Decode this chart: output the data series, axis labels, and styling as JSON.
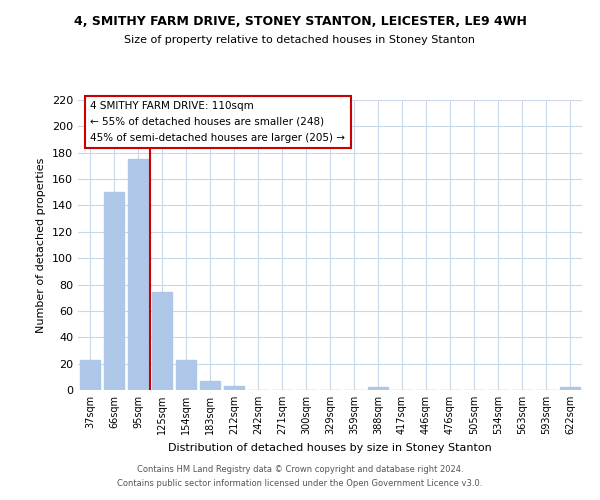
{
  "title": "4, SMITHY FARM DRIVE, STONEY STANTON, LEICESTER, LE9 4WH",
  "subtitle": "Size of property relative to detached houses in Stoney Stanton",
  "xlabel": "Distribution of detached houses by size in Stoney Stanton",
  "ylabel": "Number of detached properties",
  "bar_labels": [
    "37sqm",
    "66sqm",
    "95sqm",
    "125sqm",
    "154sqm",
    "183sqm",
    "212sqm",
    "242sqm",
    "271sqm",
    "300sqm",
    "329sqm",
    "359sqm",
    "388sqm",
    "417sqm",
    "446sqm",
    "476sqm",
    "505sqm",
    "534sqm",
    "563sqm",
    "593sqm",
    "622sqm"
  ],
  "bar_values": [
    23,
    150,
    175,
    74,
    23,
    7,
    3,
    0,
    0,
    0,
    0,
    0,
    2,
    0,
    0,
    0,
    0,
    0,
    0,
    0,
    2
  ],
  "bar_color": "#aec6e8",
  "vline_color": "#cc0000",
  "box_color": "#ffffff",
  "box_edge_color": "#cc0000",
  "property_line_label": "4 SMITHY FARM DRIVE: 110sqm",
  "annotation_line1": "← 55% of detached houses are smaller (248)",
  "annotation_line2": "45% of semi-detached houses are larger (205) →",
  "ylim": [
    0,
    220
  ],
  "yticks": [
    0,
    20,
    40,
    60,
    80,
    100,
    120,
    140,
    160,
    180,
    200,
    220
  ],
  "footer_line1": "Contains HM Land Registry data © Crown copyright and database right 2024.",
  "footer_line2": "Contains public sector information licensed under the Open Government Licence v3.0.",
  "bg_color": "#ffffff",
  "grid_color": "#c8d8e8",
  "title_fontsize": 9,
  "subtitle_fontsize": 8,
  "ylabel_fontsize": 8,
  "xlabel_fontsize": 8,
  "tick_fontsize": 7,
  "footer_fontsize": 6,
  "annot_fontsize": 7.5
}
